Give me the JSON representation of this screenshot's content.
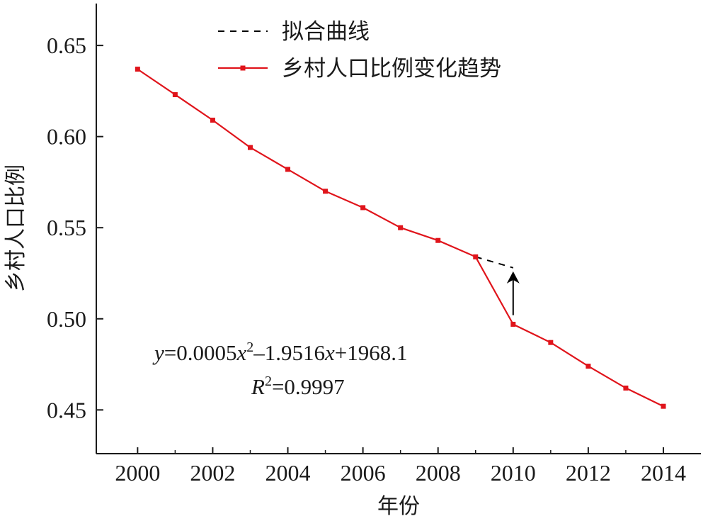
{
  "chart_data": {
    "type": "line",
    "xlabel": "年份",
    "ylabel": "乡村人口比例",
    "xlim": [
      1998.9,
      2015.0
    ],
    "ylim": [
      0.426,
      0.673
    ],
    "x_ticks": [
      2000,
      2002,
      2004,
      2006,
      2008,
      2010,
      2012,
      2014
    ],
    "x_tick_labels": [
      "2000",
      "2002",
      "2004",
      "2006",
      "2008",
      "2010",
      "2012",
      "2014"
    ],
    "y_ticks": [
      0.45,
      0.5,
      0.55,
      0.6,
      0.65
    ],
    "y_tick_labels": [
      "0.45",
      "0.50",
      "0.55",
      "0.60",
      "0.65"
    ],
    "grid": false,
    "legend_position": "top-center",
    "series": [
      {
        "name": "拟合曲线",
        "style": "dashed",
        "color": "#000000",
        "x": [
          2009,
          2010
        ],
        "y": [
          0.534,
          0.528
        ]
      },
      {
        "name": "乡村人口比例变化趋势",
        "style": "solid-with-square-markers",
        "color": "#e0141b",
        "x": [
          2000,
          2001,
          2002,
          2003,
          2004,
          2005,
          2006,
          2007,
          2008,
          2009,
          2010,
          2011,
          2012,
          2013,
          2014
        ],
        "y": [
          0.637,
          0.623,
          0.609,
          0.594,
          0.582,
          0.57,
          0.561,
          0.55,
          0.543,
          0.534,
          0.497,
          0.487,
          0.474,
          0.462,
          0.452
        ]
      }
    ],
    "annotations": {
      "equation": {
        "y": "y",
        "eq1": "=0.0005",
        "x1": "x",
        "sup1": "2",
        "eq2": "–1.9516",
        "x2": "x",
        "eq3": "+1968.1"
      },
      "r_squared": {
        "R": "R",
        "sup": "2",
        "value": "=0.9997"
      },
      "arrow": {
        "x": 2010,
        "y_from": 0.502,
        "y_to": 0.526
      }
    }
  }
}
